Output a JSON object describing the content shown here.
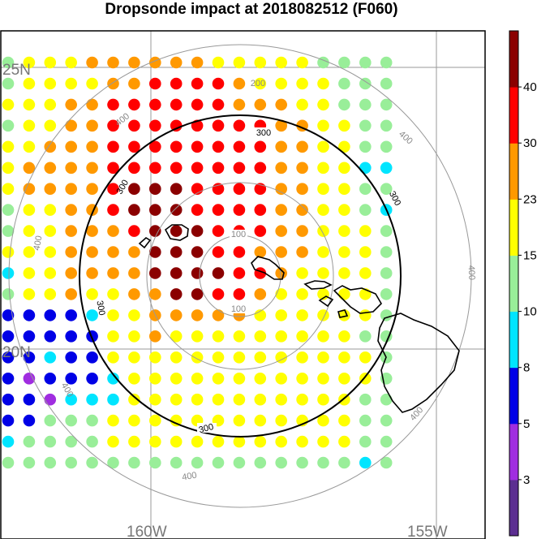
{
  "title": "Dropsonde impact at 2018082512 (F060)",
  "map": {
    "lat_labels": [
      "25N",
      "20N"
    ],
    "lon_labels": [
      "160W",
      "155W"
    ],
    "range_ring_labels": [
      {
        "text": "100",
        "color": "#888888"
      },
      {
        "text": "200",
        "color": "#888888"
      },
      {
        "text": "300",
        "color": "#000000"
      },
      {
        "text": "400",
        "color": "#888888"
      }
    ]
  },
  "colorbar": {
    "ticks": [
      "40",
      "30",
      "23",
      "15",
      "10",
      "8",
      "5",
      "3"
    ],
    "colors": [
      "#5c2e91",
      "#a02de0",
      "#0000e6",
      "#00e5ff",
      "#99ee99",
      "#ffff00",
      "#ff9900",
      "#ff0000",
      "#8b0000"
    ]
  },
  "chart_data": {
    "type": "heatmap",
    "title": "Dropsonde impact at 2018082512 (F060)",
    "value_scale": "category index 0-8 (0 = <3, 1 = 3-5, 2 = 5-8, 3 = 8-10, 4 = 10-15, 5 = 15-23, 6 = 23-30, 7 = 30-40, 8 = >40)",
    "rows": 20,
    "cols": 19,
    "grid": [
      "4555666666555554444",
      "4555566777765555444",
      "5556677777766655444",
      "4556677777777665544",
      "5566677777777665544",
      "5666677777777665533",
      "5666678887777665544",
      "4556678887777665543",
      "4556667888777665554",
      "5556666888776665554",
      "3556666888877655554",
      "4556556688776555554",
      "2222355666665555554",
      "2222255655555555544",
      "2232255555555555554",
      "2122235555555555554",
      "2213335555555555544",
      "2244455555555555544",
      "3444455555555555544",
      "4444444444444444434"
    ]
  }
}
